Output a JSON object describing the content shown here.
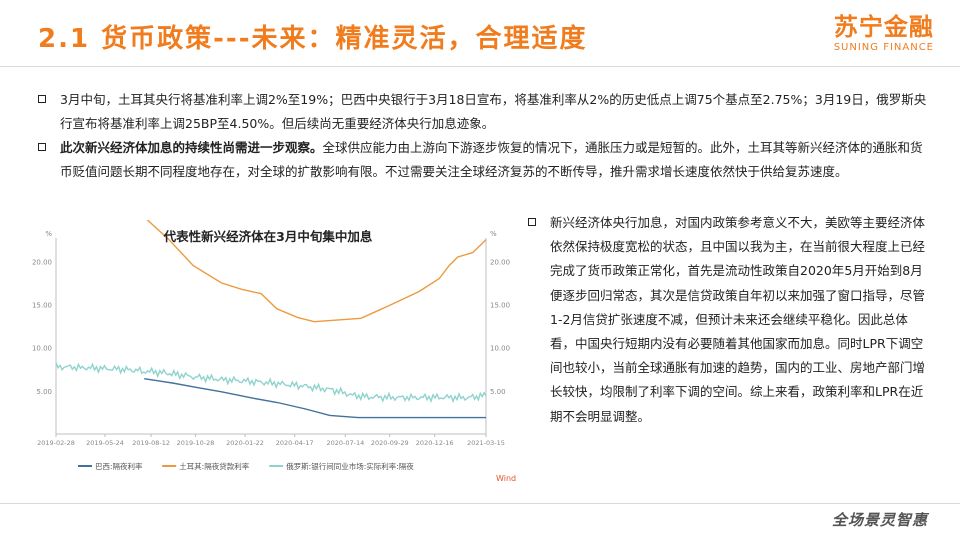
{
  "header": {
    "title": "2.1 货币政策---未来：精准灵活，合理适度",
    "logo_cn": "苏宁金融",
    "logo_en": "SUNING FINANCE"
  },
  "bullets": {
    "b1": "3月中旬，土耳其央行将基准利率上调2%至19%；巴西中央银行于3月18日宣布，将基准利率从2%的历史低点上调75个基点至2.75%；3月19日，俄罗斯央行宣布将基准利率上调25BP至4.50%。但后续尚无重要经济体央行加息迹象。",
    "b2_bold": "此次新兴经济体加息的持续性尚需进一步观察。",
    "b2_rest": "全球供应能力由上游向下游逐步恢复的情况下，通胀压力或是短暂的。此外，土耳其等新兴经济体的通胀和货币贬值问题长期不同程度地存在，对全球的扩散影响有限。不过需要关注全球经济复苏的不断传导，推升需求增长速度依然快于供给复苏速度。"
  },
  "right_text": "新兴经济体央行加息，对国内政策参考意义不大，美欧等主要经济体依然保持极度宽松的状态，且中国以我为主，在当前很大程度上已经完成了货币政策正常化，首先是流动性政策自2020年5月开始到8月便逐步回归常态，其次是信贷政策自年初以来加强了窗口指导，尽管1-2月信贷扩张速度不减，但预计未来还会继续平稳化。因此总体看，中国央行短期内没有必要随着其他国家而加息。同时LPR下调空间也较小，当前全球通胀有加速的趋势，国内的工业、房地产部门增长较快，均限制了利率下调的空间。综上来看，政策利率和LPR在近期不会明显调整。",
  "chart_data": {
    "type": "line",
    "title": "代表性新兴经济体在3月中旬集中加息",
    "x_ticks": [
      "2019-02-28",
      "2019-05-24",
      "2019-08-12",
      "2019-10-28",
      "2020-01-22",
      "2020-04-17",
      "2020-07-14",
      "2020-09-29",
      "2020-12-16",
      "2021-03-15"
    ],
    "y_ticks_left": [
      "%",
      "20.00",
      "15.00",
      "10.00",
      "5.00"
    ],
    "y_ticks_right": [
      "%",
      "20.00",
      "15.00",
      "10.00",
      "5.00"
    ],
    "ylim": [
      0,
      22
    ],
    "source": "Wind",
    "series": [
      {
        "name": "巴西:隔夜利率",
        "color": "#41719c",
        "points": [
          [
            "2019-07-31",
            6.4
          ],
          [
            "2019-09-18",
            5.9
          ],
          [
            "2019-10-30",
            5.4
          ],
          [
            "2019-12-11",
            4.9
          ],
          [
            "2020-02-05",
            4.15
          ],
          [
            "2020-03-18",
            3.65
          ],
          [
            "2020-05-06",
            2.9
          ],
          [
            "2020-06-17",
            2.15
          ],
          [
            "2020-08-05",
            1.9
          ],
          [
            "2021-03-15",
            1.9
          ]
        ]
      },
      {
        "name": "土耳其:隔夜贷款利率",
        "color": "#ed9a3f",
        "points": [
          [
            "2019-07-25",
            25.5
          ],
          [
            "2019-09-12",
            22.5
          ],
          [
            "2019-10-24",
            19.5
          ],
          [
            "2019-12-12",
            17.5
          ],
          [
            "2020-01-16",
            16.75
          ],
          [
            "2020-02-19",
            16.25
          ],
          [
            "2020-03-17",
            14.5
          ],
          [
            "2020-04-22",
            13.5
          ],
          [
            "2020-05-21",
            13
          ],
          [
            "2020-08-10",
            13.4
          ],
          [
            "2020-09-24",
            14.75
          ],
          [
            "2020-11-19",
            16.5
          ],
          [
            "2020-12-24",
            18
          ],
          [
            "2021-01-10",
            19.5
          ],
          [
            "2021-01-25",
            20.5
          ],
          [
            "2021-02-20",
            21
          ],
          [
            "2021-03-15",
            22.5
          ]
        ]
      },
      {
        "name": "俄罗斯:银行间同业市场:实际利率:隔夜",
        "color": "#8fd3cd",
        "points": [
          [
            "2019-02-28",
            7.8
          ],
          [
            "2019-04-15",
            7.7
          ],
          [
            "2019-06-20",
            7.5
          ],
          [
            "2019-07-30",
            7.3
          ],
          [
            "2019-09-10",
            7.05
          ],
          [
            "2019-10-28",
            6.6
          ],
          [
            "2019-12-16",
            6.3
          ],
          [
            "2020-02-10",
            6.05
          ],
          [
            "2020-04-27",
            5.6
          ],
          [
            "2020-06-22",
            5.1
          ],
          [
            "2020-07-27",
            4.5
          ],
          [
            "2020-08-20",
            4.3
          ],
          [
            "2020-10-29",
            4.2
          ],
          [
            "2020-12-20",
            4.25
          ],
          [
            "2021-02-10",
            4.2
          ],
          [
            "2021-03-15",
            4.45
          ]
        ]
      }
    ]
  },
  "footer": {
    "slogan": "全场景灵智惠"
  }
}
